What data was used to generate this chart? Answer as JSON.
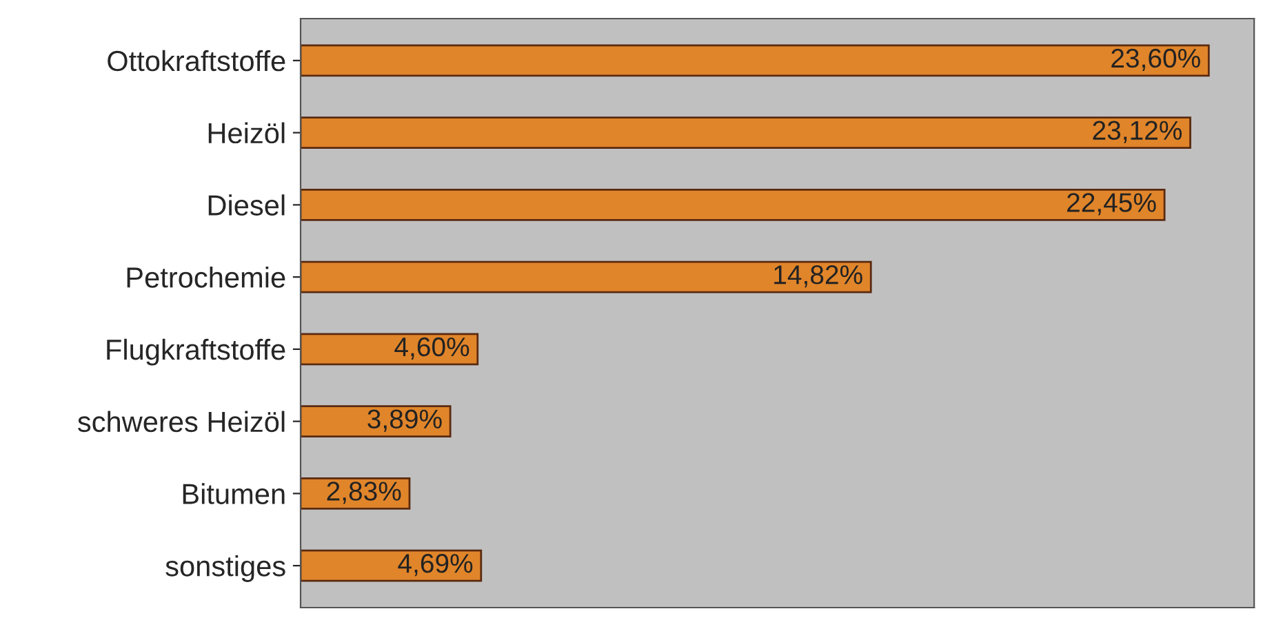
{
  "chart_data": {
    "type": "bar",
    "orientation": "horizontal",
    "categories": [
      "Ottokraftstoffe",
      "Heizöl",
      "Diesel",
      "Petrochemie",
      "Flugkraftstoffe",
      "schweres Heizöl",
      "Bitumen",
      "sonstiges"
    ],
    "values": [
      23.6,
      23.12,
      22.45,
      14.82,
      4.6,
      3.89,
      2.83,
      4.69
    ],
    "value_labels": [
      "23,60%",
      "23,12%",
      "22,45%",
      "14,82%",
      "4,60%",
      "3,89%",
      "2,83%",
      "4,69%"
    ],
    "color": "#e0852a",
    "grid": false,
    "legend": false,
    "tick_labels": "y"
  }
}
